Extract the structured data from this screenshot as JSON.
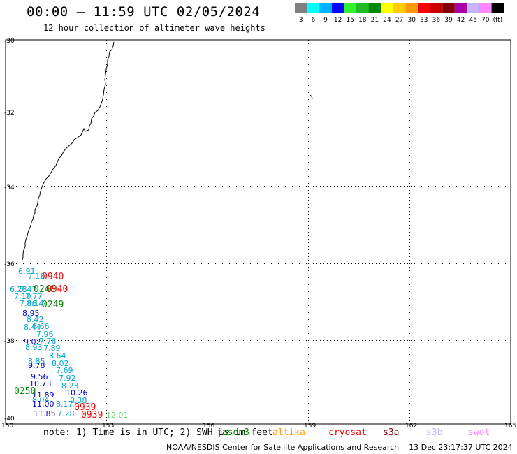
{
  "header": {
    "title": "00:00 – 11:59 UTC 02/05/2024",
    "subtitle": "12 hour collection of altimeter wave heights"
  },
  "legend": {
    "colors": [
      "#808080",
      "#00ffff",
      "#00b4ff",
      "#0000ff",
      "#33ee33",
      "#22bb22",
      "#008800",
      "#ffff00",
      "#ffcc00",
      "#ff9900",
      "#ff0000",
      "#cc0000",
      "#880000",
      "#aa00aa",
      "#c8b4ff",
      "#ff88ff",
      "#000000"
    ],
    "labels": [
      "3",
      "6",
      "9",
      "12",
      "15",
      "18",
      "21",
      "24",
      "27",
      "30",
      "33",
      "36",
      "39",
      "42",
      "45",
      "70",
      "(ft)"
    ]
  },
  "axes": {
    "lat_labels": [
      "-30",
      "-32",
      "-34",
      "-36",
      "-38",
      "-40"
    ],
    "lon_labels": [
      "150",
      "153",
      "156",
      "159",
      "162",
      "165"
    ]
  },
  "observations": [
    {
      "text": "6.91",
      "color": "#00aacc"
    },
    {
      "text": "7.18",
      "color": "#00aacc"
    },
    {
      "text": "0940",
      "color": "#ff0000"
    },
    {
      "text": "6.28",
      "color": "#00aacc"
    },
    {
      "text": "7.47",
      "color": "#00aacc"
    },
    {
      "text": "0240",
      "color": "#008800"
    },
    {
      "text": "0940",
      "color": "#ff0000"
    },
    {
      "text": "7.10",
      "color": "#00aacc"
    },
    {
      "text": "7.77",
      "color": "#00aacc"
    },
    {
      "text": "7.86",
      "color": "#00aacc"
    },
    {
      "text": "8.14",
      "color": "#00aacc"
    },
    {
      "text": "0249",
      "color": "#008800"
    },
    {
      "text": "8.95",
      "color": "#0000cc"
    },
    {
      "text": "8.42",
      "color": "#00aacc"
    },
    {
      "text": "8.66",
      "color": "#00aacc"
    },
    {
      "text": "8.44",
      "color": "#00aacc"
    },
    {
      "text": "7.96",
      "color": "#00aacc"
    },
    {
      "text": "9.02",
      "color": "#0000cc"
    },
    {
      "text": "7.78",
      "color": "#00aacc"
    },
    {
      "text": "8.93",
      "color": "#00aacc"
    },
    {
      "text": "7.89",
      "color": "#00aacc"
    },
    {
      "text": "8.64",
      "color": "#00aacc"
    },
    {
      "text": "8.85",
      "color": "#00aacc"
    },
    {
      "text": "8.02",
      "color": "#00aacc"
    },
    {
      "text": "9.78",
      "color": "#0000cc"
    },
    {
      "text": "7.69",
      "color": "#00aacc"
    },
    {
      "text": "9.56",
      "color": "#0000cc"
    },
    {
      "text": "7.92",
      "color": "#00aacc"
    },
    {
      "text": "10.73",
      "color": "#0000cc"
    },
    {
      "text": "8.23",
      "color": "#00aacc"
    },
    {
      "text": "10.26",
      "color": "#0000cc"
    },
    {
      "text": "11.89",
      "color": "#0000cc"
    },
    {
      "text": "8.04",
      "color": "#00aacc"
    },
    {
      "text": "8.38",
      "color": "#00aacc"
    },
    {
      "text": "11.00",
      "color": "#0000cc"
    },
    {
      "text": "8.17",
      "color": "#00aacc"
    },
    {
      "text": "0939",
      "color": "#ff0000"
    },
    {
      "text": "11.85",
      "color": "#0000cc"
    },
    {
      "text": "7.28",
      "color": "#00aacc"
    },
    {
      "text": "0939",
      "color": "#ff0000"
    },
    {
      "text": "12.01",
      "color": "#66dd66"
    },
    {
      "text": "0250",
      "color": "#008800"
    }
  ],
  "note": {
    "text": "note: 1) Time is in UTC; 2) SWH is in feet"
  },
  "satellites": [
    {
      "name": "jason3",
      "color": "#008800"
    },
    {
      "name": "altika",
      "color": "#ff9900"
    },
    {
      "name": "cryosat",
      "color": "#ff0000"
    },
    {
      "name": "s3a",
      "color": "#880000"
    },
    {
      "name": "s3b",
      "color": "#c8b4ff"
    },
    {
      "name": "swot",
      "color": "#ff88ff"
    }
  ],
  "credit": "NOAA/NESDIS Center for Satellite Applications and Research",
  "generated": "13 Dec 23:17:37 UTC 2024"
}
